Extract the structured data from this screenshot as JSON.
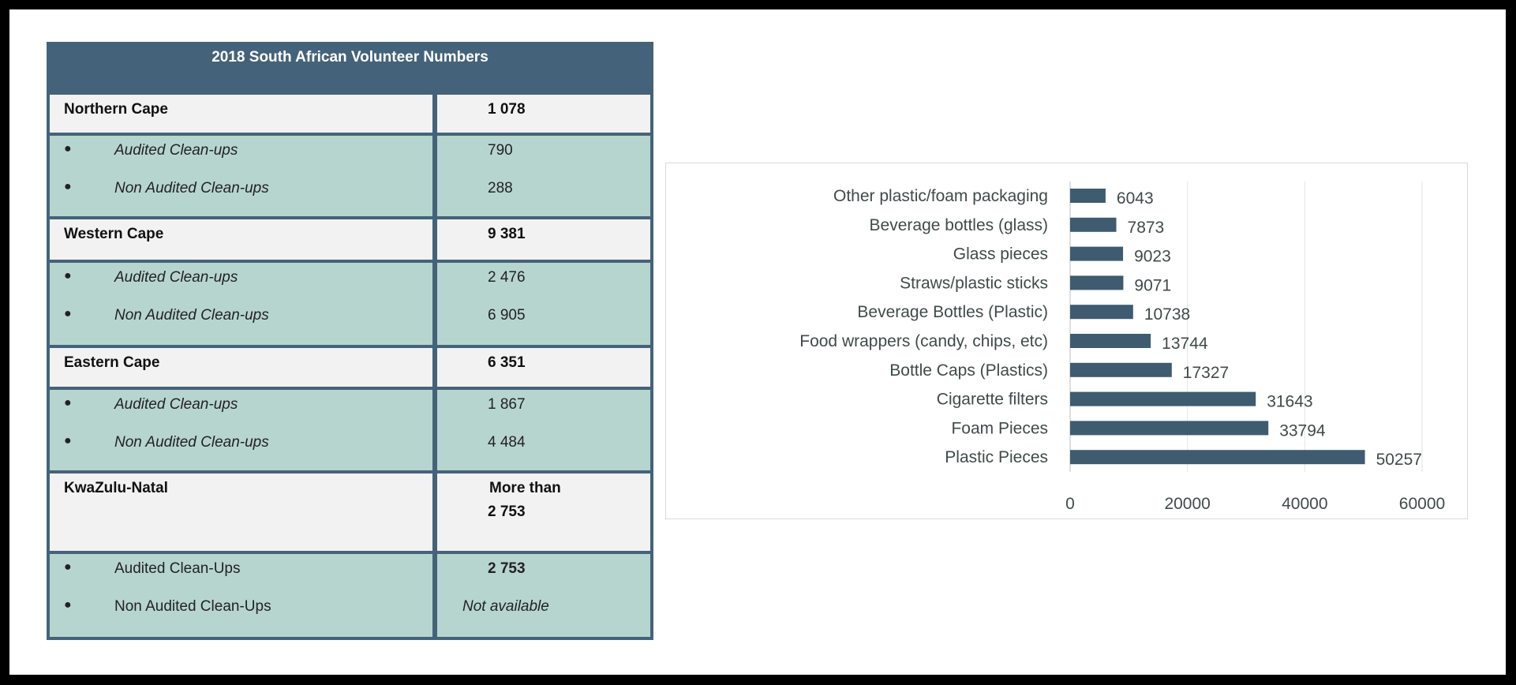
{
  "table": {
    "title": "2018 South African Volunteer Numbers",
    "sections": [
      {
        "region": "Northern Cape",
        "total": "1 078",
        "total_prefix": "",
        "items": [
          {
            "label": "Audited Clean-ups",
            "value": "790"
          },
          {
            "label": "Non Audited Clean-ups",
            "value": "288"
          }
        ]
      },
      {
        "region": "Western Cape",
        "total": "9 381",
        "total_prefix": "",
        "items": [
          {
            "label": "Audited Clean-ups",
            "value": "2 476"
          },
          {
            "label": "Non Audited Clean-ups",
            "value": "6 905"
          }
        ]
      },
      {
        "region": "Eastern Cape",
        "total": "6 351",
        "total_prefix": "",
        "items": [
          {
            "label": "Audited Clean-ups",
            "value": "1 867"
          },
          {
            "label": "Non Audited Clean-ups",
            "value": "4 484"
          }
        ]
      },
      {
        "region": "KwaZulu-Natal",
        "total": "2 753",
        "total_prefix": "More than",
        "items": [
          {
            "label": "Audited Clean-Ups",
            "value": "2 753"
          },
          {
            "label": "Non Audited Clean-Ups",
            "value": "Not available"
          }
        ]
      }
    ]
  },
  "chart_data": {
    "type": "bar",
    "orientation": "horizontal",
    "categories": [
      "Other plastic/foam packaging",
      "Beverage bottles (glass)",
      "Glass pieces",
      "Straws/plastic sticks",
      "Beverage Bottles (Plastic)",
      "Food wrappers (candy, chips, etc)",
      "Bottle Caps (Plastics)",
      "Cigarette filters",
      "Foam Pieces",
      "Plastic Pieces"
    ],
    "values": [
      6043,
      7873,
      9023,
      9071,
      10738,
      13744,
      17327,
      31643,
      33794,
      50257
    ],
    "xlim": [
      0,
      60000
    ],
    "xticks": [
      "0",
      "20000",
      "40000",
      "60000"
    ],
    "xtick_values": [
      0,
      20000,
      40000,
      60000
    ],
    "grid": true,
    "bar_color": "#3e5b70",
    "title": "",
    "xlabel": "",
    "ylabel": ""
  }
}
